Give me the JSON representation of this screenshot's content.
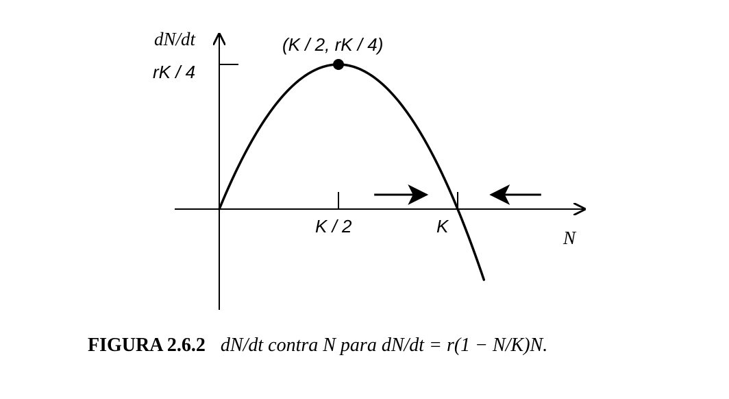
{
  "figure": {
    "axis_y_label": "dN/dt",
    "axis_x_label": "N",
    "tick_y_label": "rK / 4",
    "tick_x_half_label": "K / 2",
    "tick_x_k_label": "K",
    "peak_label": "(K / 2, rK / 4)",
    "caption_label": "FIGURA 2.6.2",
    "caption_text": "dN/dt contra N para dN/dt = r(1 − N/K)N."
  },
  "chart_data": {
    "type": "line",
    "title": "",
    "xlabel": "N",
    "ylabel": "dN/dt",
    "parameters": {
      "r": 1,
      "K": 1
    },
    "x": [
      0,
      0.1,
      0.2,
      0.3,
      0.4,
      0.5,
      0.6,
      0.7,
      0.8,
      0.9,
      1.0,
      1.1,
      1.11
    ],
    "series": [
      {
        "values": [
          0,
          0.09,
          0.16,
          0.21,
          0.24,
          0.25,
          0.24,
          0.21,
          0.16,
          0.09,
          0,
          -0.11,
          -0.122
        ]
      }
    ],
    "peak_point": {
      "x": 0.5,
      "y": 0.25
    },
    "xlim": [
      -0.18,
      1.53
    ],
    "ylim": [
      -0.19,
      0.33
    ],
    "flow_arrows": [
      {
        "direction": "right",
        "x_range": [
          0.65,
          0.87
        ]
      },
      {
        "direction": "left",
        "x_range": [
          1.14,
          1.35
        ]
      }
    ],
    "grid": false
  }
}
